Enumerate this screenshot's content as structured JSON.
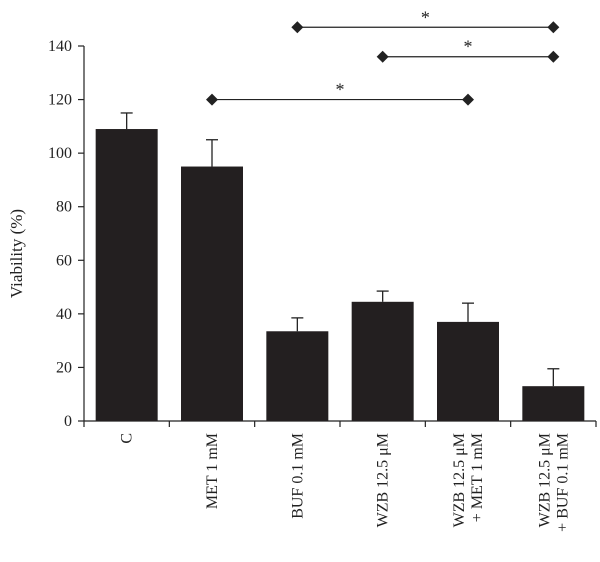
{
  "chart_data": {
    "type": "bar",
    "title": "",
    "xlabel": "",
    "ylabel": "Viability (%)",
    "ylim": [
      0,
      140
    ],
    "yticks": [
      0,
      20,
      40,
      60,
      80,
      100,
      120,
      140
    ],
    "grid": false,
    "legend": "none",
    "bar_color": "#231f20",
    "categories": [
      [
        "C"
      ],
      [
        "MET 1 mM"
      ],
      [
        "BUF 0.1 mM"
      ],
      [
        "WZB 12.5 μM"
      ],
      [
        "WZB 12.5 μM",
        "+ MET 1 mM"
      ],
      [
        "WZB 12.5 μM",
        "+ BUF 0.1 mM"
      ]
    ],
    "values": [
      109,
      95,
      33.5,
      44.5,
      37,
      13
    ],
    "errors": [
      6,
      10,
      5,
      4,
      7,
      6.5
    ],
    "significance": [
      {
        "from": 1,
        "to": 4,
        "y": 120,
        "label": "*"
      },
      {
        "from": 3,
        "to": 5,
        "y": 136,
        "label": "*"
      },
      {
        "from": 2,
        "to": 5,
        "y": 147,
        "label": "*"
      }
    ]
  }
}
